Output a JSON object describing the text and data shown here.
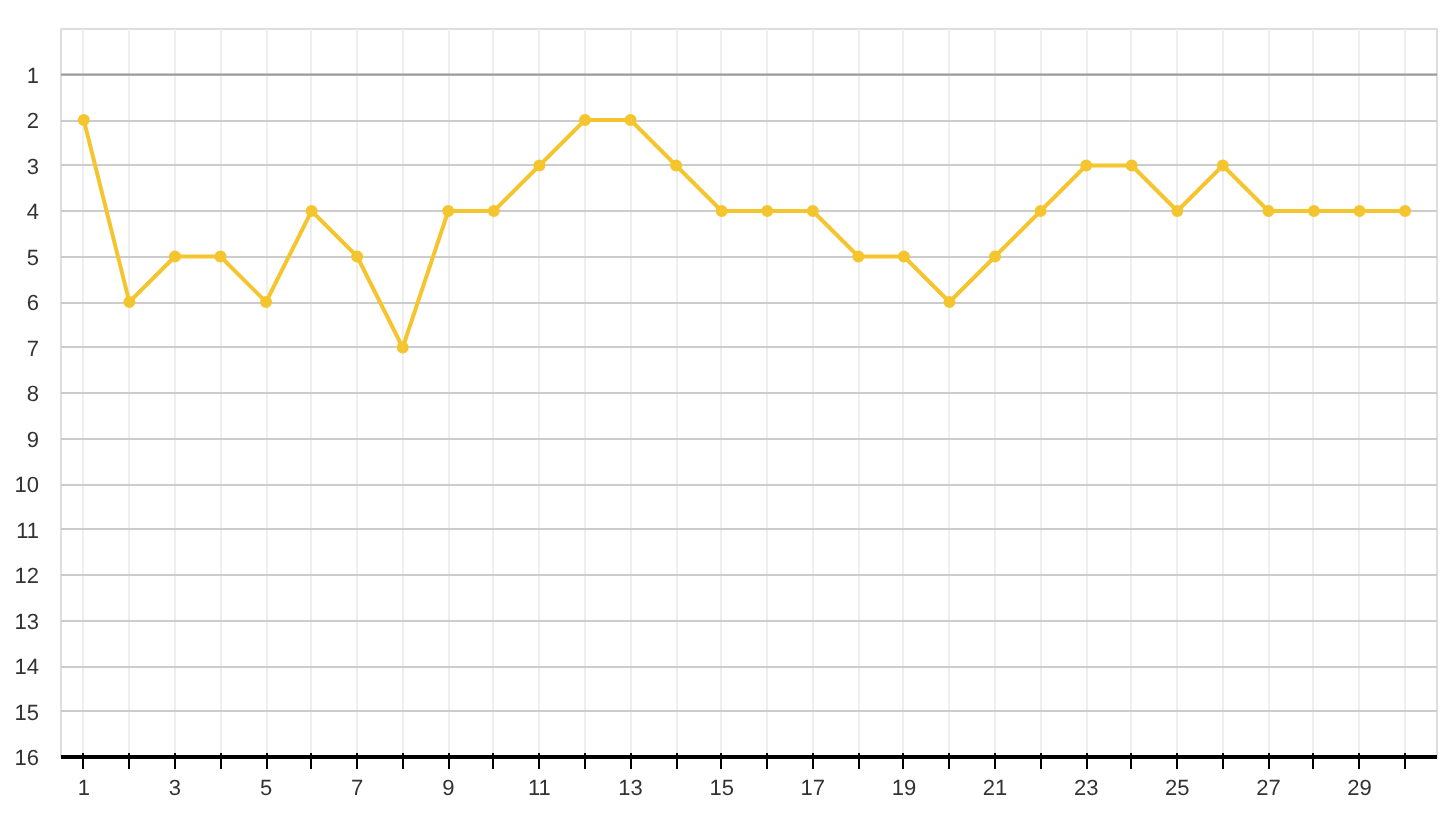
{
  "chart_data": {
    "type": "line",
    "x": [
      1,
      2,
      3,
      4,
      5,
      6,
      7,
      8,
      9,
      10,
      11,
      12,
      13,
      14,
      15,
      16,
      17,
      18,
      19,
      20,
      21,
      22,
      23,
      24,
      25,
      26,
      27,
      28,
      29,
      30
    ],
    "series": [
      {
        "color": "#f5c52f",
        "values": [
          2,
          6,
          5,
          5,
          6,
          4,
          5,
          7,
          4,
          4,
          3,
          2,
          2,
          3,
          4,
          4,
          4,
          5,
          5,
          6,
          5,
          4,
          3,
          3,
          4,
          3,
          4,
          4,
          4,
          4
        ]
      }
    ],
    "xlim": [
      0.5,
      30.7
    ],
    "ylim": [
      16,
      0
    ],
    "xticks": [
      1,
      {
        "value": 2,
        "label": null
      },
      3,
      {
        "value": 4,
        "label": null
      },
      5,
      {
        "value": 6,
        "label": null
      },
      7,
      {
        "value": 8,
        "label": null
      },
      9,
      {
        "value": 10,
        "label": null
      },
      11,
      {
        "value": 12,
        "label": null
      },
      13,
      {
        "value": 14,
        "label": null
      },
      15,
      {
        "value": 16,
        "label": null
      },
      17,
      {
        "value": 18,
        "label": null
      },
      19,
      {
        "value": 20,
        "label": null
      },
      21,
      {
        "value": 22,
        "label": null
      },
      23,
      {
        "value": 24,
        "label": null
      },
      25,
      {
        "value": 26,
        "label": null
      },
      27,
      {
        "value": 28,
        "label": null
      },
      29,
      {
        "value": 30,
        "label": null
      }
    ],
    "yticks": [
      1,
      2,
      3,
      4,
      5,
      6,
      7,
      8,
      9,
      10,
      11,
      12,
      13,
      14,
      15,
      16
    ],
    "ref_lines": [
      {
        "axis": "y",
        "value": 1,
        "label": null,
        "color": "#999999"
      }
    ],
    "grid": true,
    "marker": "circle",
    "line_style": "solid"
  }
}
